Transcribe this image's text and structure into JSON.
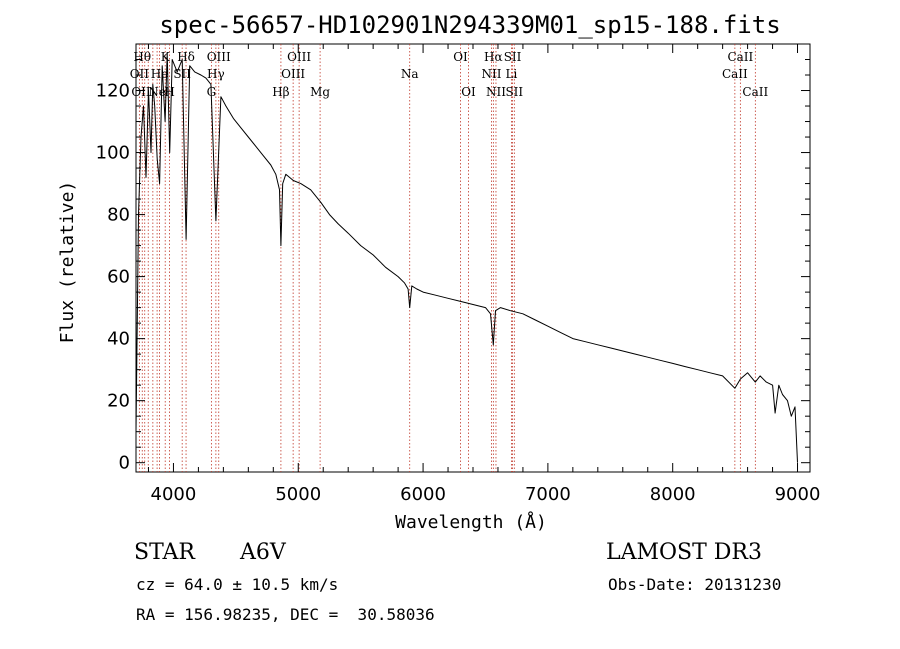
{
  "chart_data": {
    "type": "line",
    "title": "spec-56657-HD102901N294339M01_sp15-188.fits",
    "xlabel": "Wavelength (Å)",
    "ylabel": "Flux (relative)",
    "xlim": [
      3700,
      9100
    ],
    "ylim": [
      -3,
      135
    ],
    "xticks": [
      4000,
      5000,
      6000,
      7000,
      8000,
      9000
    ],
    "yticks": [
      0,
      20,
      40,
      60,
      80,
      100,
      120
    ],
    "grid": false,
    "series": [
      {
        "name": "flux",
        "x": [
          3700,
          3720,
          3740,
          3760,
          3780,
          3800,
          3820,
          3835,
          3850,
          3870,
          3889,
          3910,
          3933,
          3950,
          3970,
          3990,
          4030,
          4070,
          4101,
          4130,
          4170,
          4220,
          4260,
          4300,
          4340,
          4380,
          4420,
          4480,
          4540,
          4600,
          4660,
          4720,
          4780,
          4820,
          4850,
          4861,
          4875,
          4900,
          4960,
          5020,
          5100,
          5180,
          5250,
          5320,
          5400,
          5500,
          5600,
          5700,
          5800,
          5850,
          5880,
          5893,
          5910,
          5950,
          6000,
          6100,
          6200,
          6300,
          6400,
          6500,
          6540,
          6563,
          6580,
          6620,
          6700,
          6800,
          6900,
          7000,
          7100,
          7200,
          7300,
          7400,
          7500,
          7600,
          7700,
          7800,
          7900,
          8000,
          8100,
          8200,
          8300,
          8400,
          8498,
          8542,
          8600,
          8662,
          8700,
          8750,
          8800,
          8820,
          8850,
          8880,
          8920,
          8950,
          8980,
          9000
        ],
        "y": [
          10,
          80,
          105,
          115,
          92,
          120,
          100,
          122,
          115,
          98,
          90,
          128,
          110,
          132,
          100,
          130,
          126,
          130,
          72,
          128,
          126,
          125,
          124,
          122,
          78,
          118,
          115,
          111,
          108,
          105,
          102,
          99,
          96,
          93,
          88,
          70,
          90,
          93,
          91,
          90,
          88,
          84,
          80,
          77,
          74,
          70,
          67,
          63,
          60,
          58,
          56,
          50,
          57,
          56,
          55,
          54,
          53,
          52,
          51,
          50,
          48,
          38,
          49,
          50,
          49,
          48,
          46,
          44,
          42,
          40,
          39,
          38,
          37,
          36,
          35,
          34,
          33,
          32,
          31,
          30,
          29,
          28,
          24,
          27,
          29,
          26,
          28,
          26,
          25,
          16,
          25,
          22,
          20,
          15,
          18,
          0
        ]
      }
    ],
    "emission_lines": [
      {
        "name": "Hδ",
        "wavelength": 4101
      },
      {
        "name": "Hγ",
        "wavelength": 4340
      },
      {
        "name": "Hβ",
        "wavelength": 4861
      },
      {
        "name": "Hα",
        "wavelength": 6563
      }
    ],
    "line_labels": [
      {
        "text": "Hθ",
        "wavelength": 3750,
        "row": 1
      },
      {
        "text": "OII",
        "wavelength": 3727,
        "row": 2
      },
      {
        "text": "OII",
        "wavelength": 3740,
        "row": 3
      },
      {
        "text": "K",
        "wavelength": 3934,
        "row": 1
      },
      {
        "text": "He",
        "wavelength": 3889,
        "row": 2
      },
      {
        "text": "Ne",
        "wavelength": 3869,
        "row": 3
      },
      {
        "text": "Hδ",
        "wavelength": 4101,
        "row": 1
      },
      {
        "text": "SII",
        "wavelength": 4070,
        "row": 2
      },
      {
        "text": "H",
        "wavelength": 3969,
        "row": 3
      },
      {
        "text": "OIII",
        "wavelength": 4363,
        "row": 1
      },
      {
        "text": "Hγ",
        "wavelength": 4340,
        "row": 2
      },
      {
        "text": "G",
        "wavelength": 4304,
        "row": 3
      },
      {
        "text": "Hβ",
        "wavelength": 4861,
        "row": 3
      },
      {
        "text": "OIII",
        "wavelength": 5007,
        "row": 1
      },
      {
        "text": "OIII",
        "wavelength": 4959,
        "row": 2
      },
      {
        "text": "Mg",
        "wavelength": 5175,
        "row": 3
      },
      {
        "text": "Na",
        "wavelength": 5893,
        "row": 2
      },
      {
        "text": "OI",
        "wavelength": 6300,
        "row": 1
      },
      {
        "text": "OI",
        "wavelength": 6364,
        "row": 3
      },
      {
        "text": "Hα",
        "wavelength": 6563,
        "row": 1
      },
      {
        "text": "NII",
        "wavelength": 6548,
        "row": 2
      },
      {
        "text": "NII",
        "wavelength": 6584,
        "row": 3
      },
      {
        "text": "SII",
        "wavelength": 6717,
        "row": 1
      },
      {
        "text": "Li",
        "wavelength": 6708,
        "row": 2
      },
      {
        "text": "SII",
        "wavelength": 6731,
        "row": 3
      },
      {
        "text": "CaII",
        "wavelength": 8542,
        "row": 1
      },
      {
        "text": "CaII",
        "wavelength": 8498,
        "row": 2
      },
      {
        "text": "CaII",
        "wavelength": 8662,
        "row": 3
      }
    ],
    "dotted_line_wavelengths": [
      3727,
      3750,
      3770,
      3798,
      3835,
      3869,
      3889,
      3934,
      3969,
      4070,
      4101,
      4304,
      4340,
      4363,
      4861,
      4959,
      5007,
      5175,
      5893,
      6300,
      6364,
      6548,
      6563,
      6584,
      6708,
      6717,
      6731,
      8498,
      8542,
      8662
    ]
  },
  "info": {
    "class_label": "STAR",
    "subclass": "A6V",
    "survey": "LAMOST DR3",
    "cz": "cz = 64.0 ± 10.5 km/s",
    "obs_date": "Obs-Date: 20131230",
    "coords": "RA = 156.98235, DEC =  30.58036"
  },
  "colors": {
    "axis": "#000000",
    "spectrum": "#000000",
    "line_marker": "#c0392b"
  }
}
